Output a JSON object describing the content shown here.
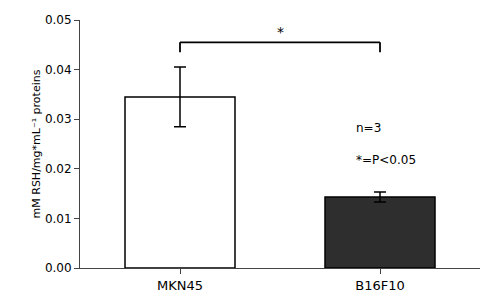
{
  "chart_data": {
    "type": "bar",
    "categories": [
      "MKN45",
      "B16F10"
    ],
    "values": [
      0.0345,
      0.0143
    ],
    "errors": [
      0.006,
      0.001
    ],
    "colors": [
      "#ffffff",
      "#2e2e2e"
    ],
    "ylabel": "mM RSH/mg*mL⁻¹ proteins",
    "ylim": [
      0,
      0.05
    ],
    "yticks": [
      {
        "value": 0,
        "label": "0.00"
      },
      0.01,
      0.02,
      0.03,
      0.04,
      0.05
    ],
    "significance": {
      "between": [
        "MKN45",
        "B16F10"
      ],
      "y": 0.0455,
      "drop": 0.002,
      "label": "*"
    },
    "annotations": [
      "n=3",
      "*=P<0.05"
    ],
    "grid": false
  }
}
